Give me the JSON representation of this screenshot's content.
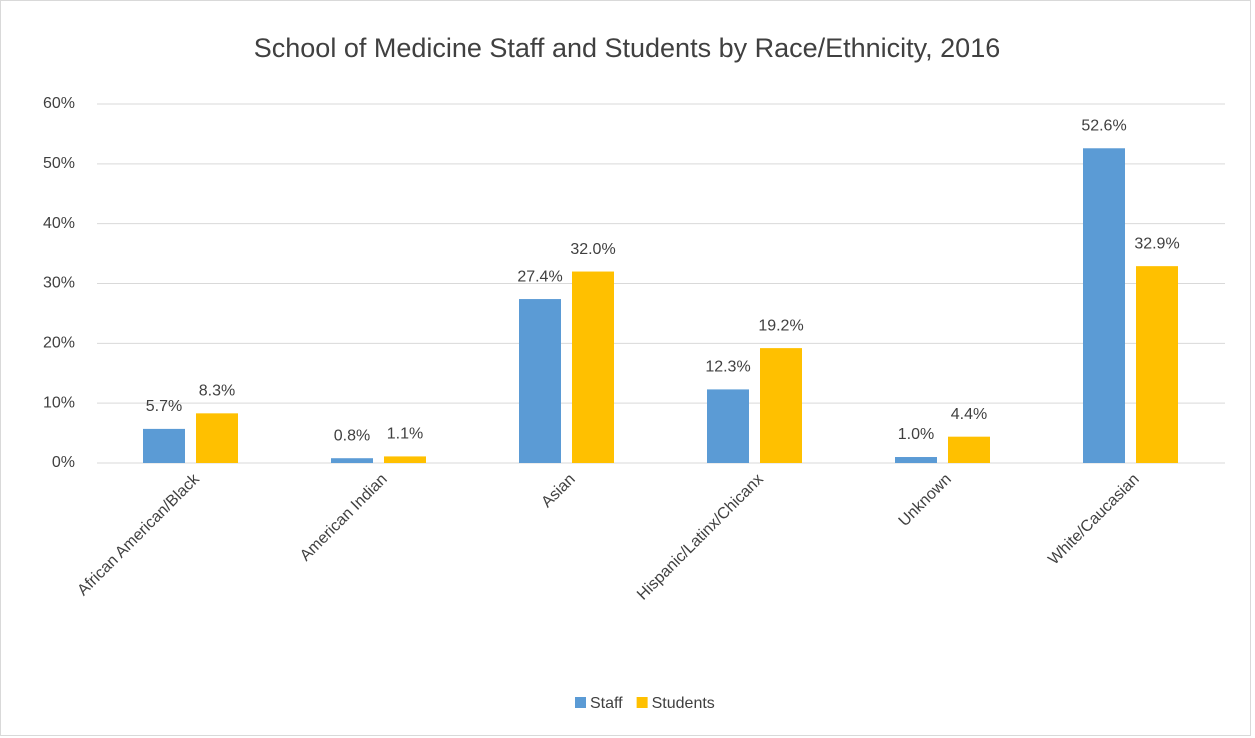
{
  "chart_data": {
    "type": "bar",
    "title": "School of Medicine Staff and Students by Race/Ethnicity, 2016",
    "categories": [
      "African American/Black",
      "American Indian",
      "Asian",
      "Hispanic/Latinx/Chicanx",
      "Unknown",
      "White/Caucasian"
    ],
    "series": [
      {
        "name": "Staff",
        "color": "#5b9bd5",
        "values": [
          5.7,
          0.8,
          27.4,
          12.3,
          1.0,
          52.6
        ],
        "value_labels": [
          "5.7%",
          "0.8%",
          "27.4%",
          "12.3%",
          "1.0%",
          "52.6%"
        ]
      },
      {
        "name": "Students",
        "color": "#ffc000",
        "values": [
          8.3,
          1.1,
          32.0,
          19.2,
          4.4,
          32.9
        ],
        "value_labels": [
          "8.3%",
          "1.1%",
          "32.0%",
          "19.2%",
          "4.4%",
          "32.9%"
        ]
      }
    ],
    "ylim": [
      0,
      60
    ],
    "yticks": [
      {
        "value": 0,
        "label": "0%"
      },
      {
        "value": 10,
        "label": "10%"
      },
      {
        "value": 20,
        "label": "20%"
      },
      {
        "value": 30,
        "label": "30%"
      },
      {
        "value": 40,
        "label": "40%"
      },
      {
        "value": 50,
        "label": "50%"
      },
      {
        "value": 60,
        "label": "60%"
      }
    ],
    "grid": true,
    "legend": "bottom"
  }
}
